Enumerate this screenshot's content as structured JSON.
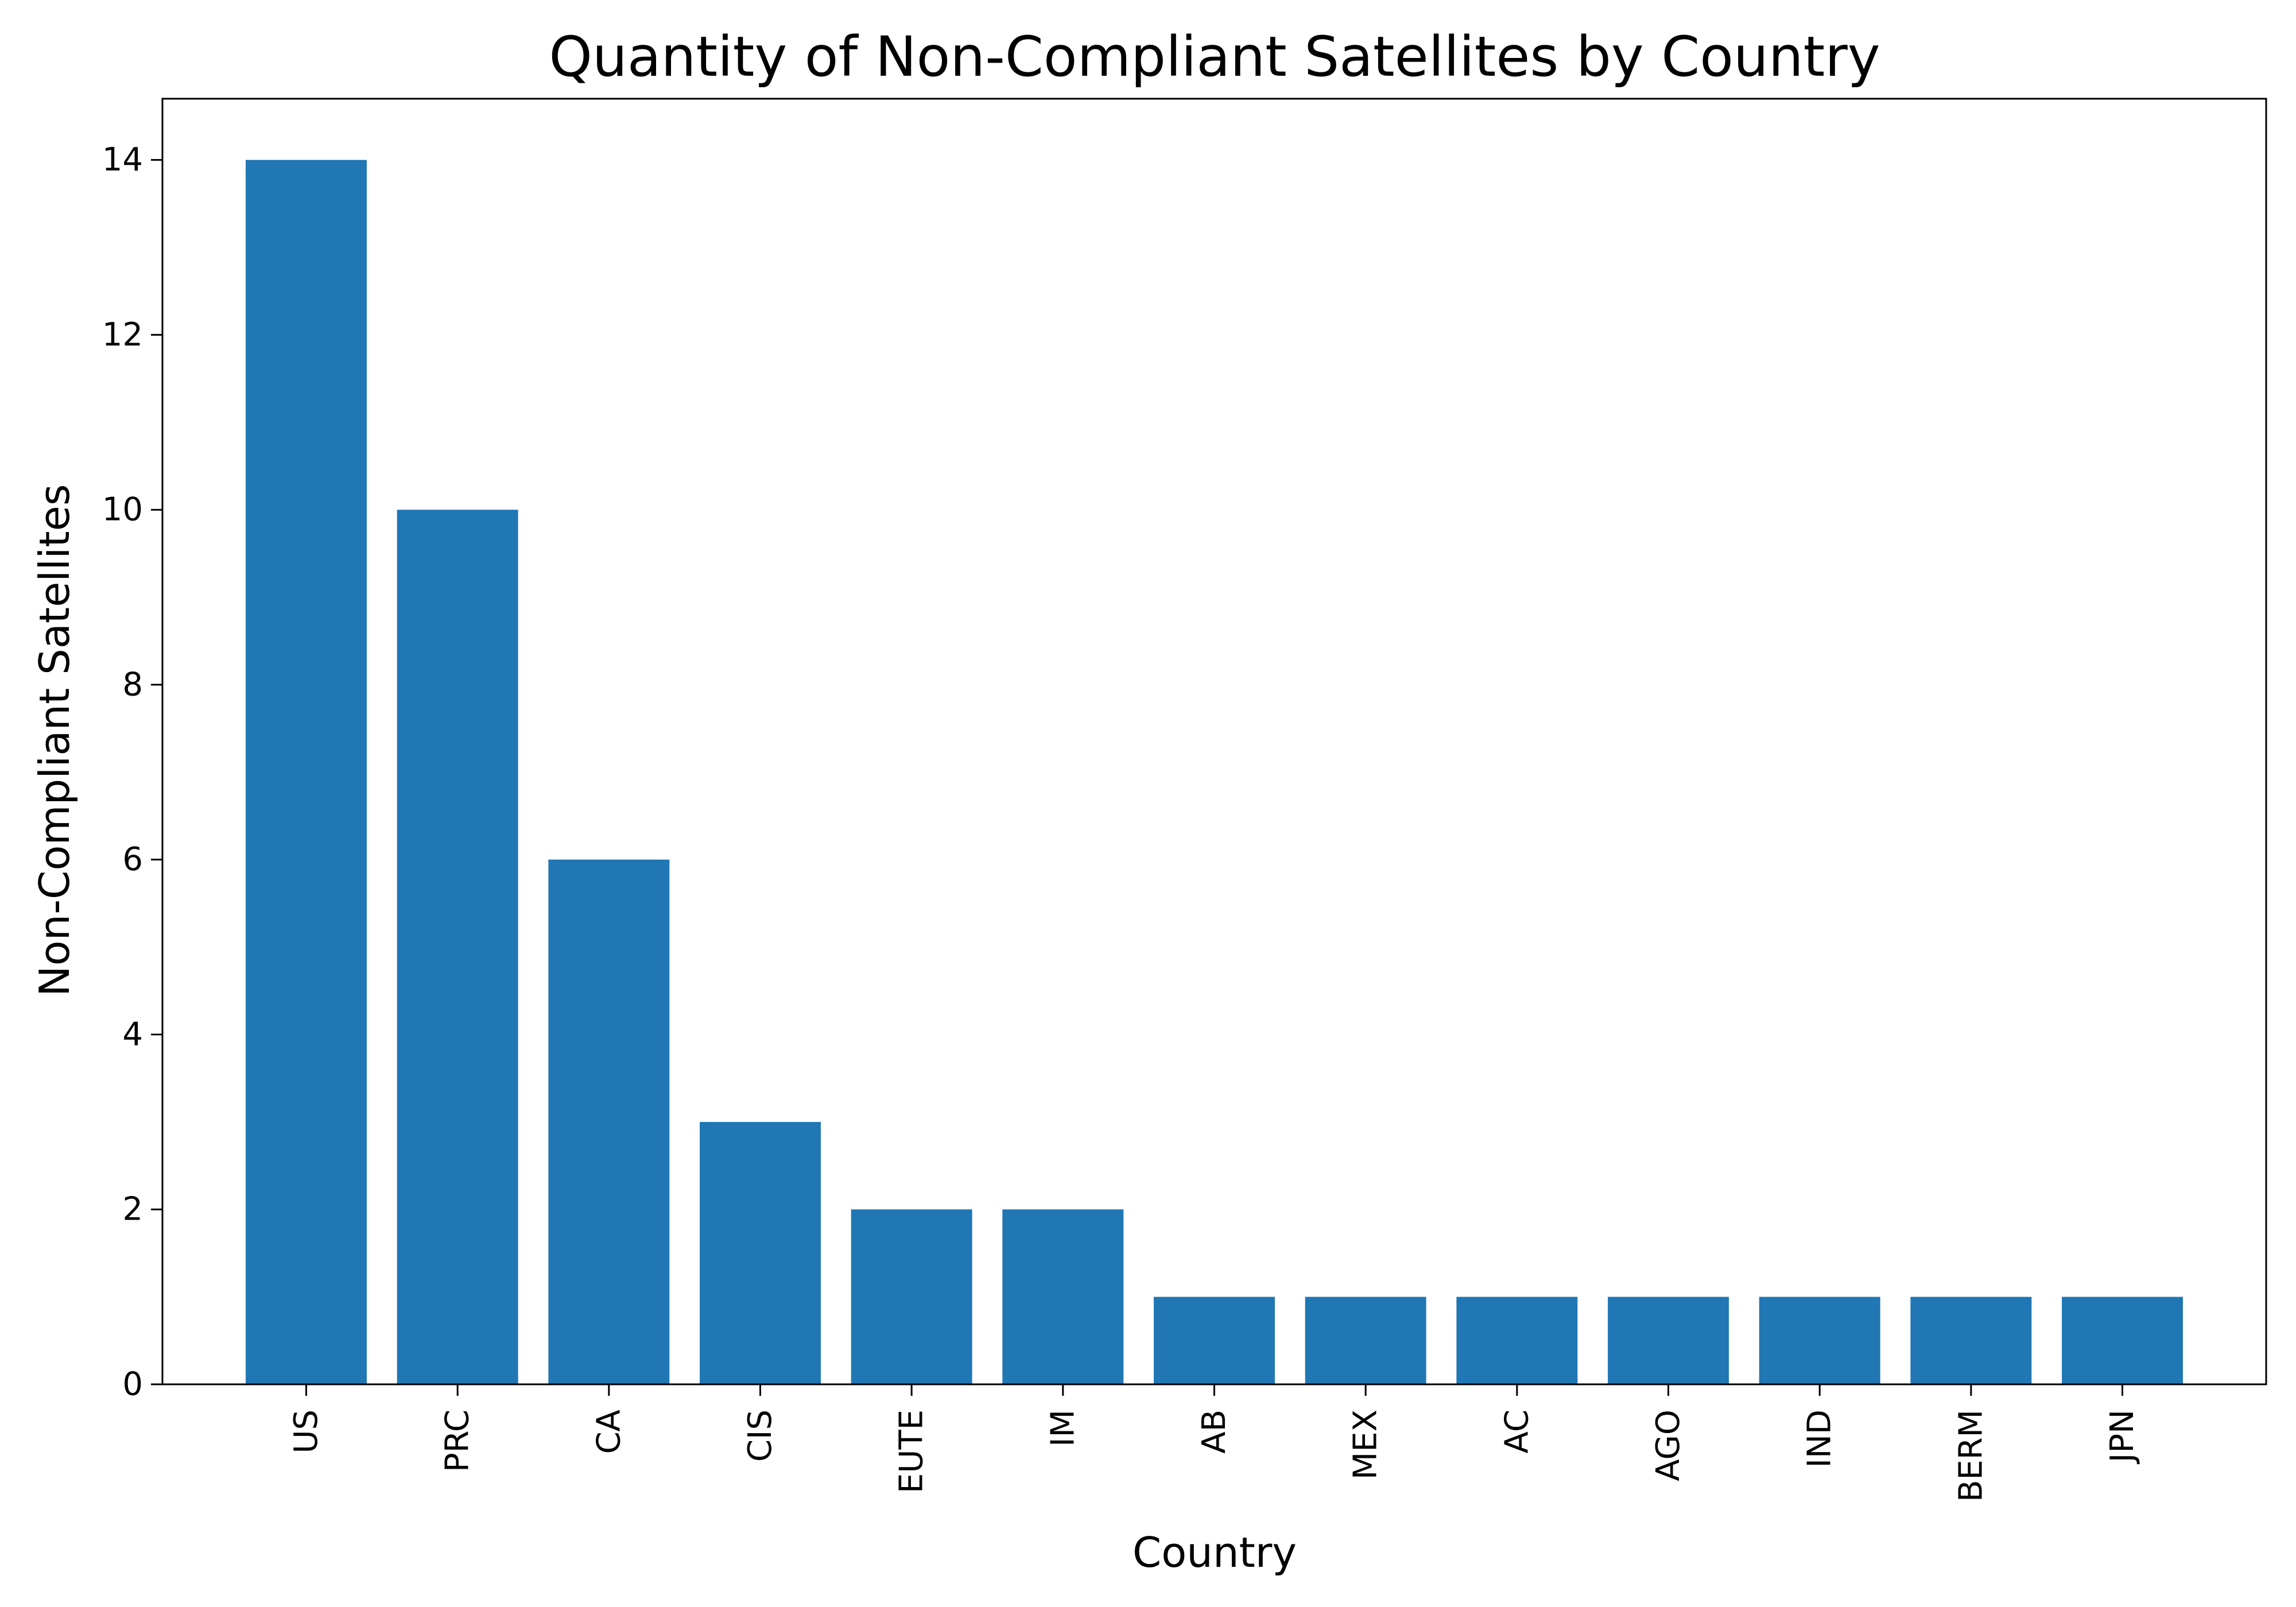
{
  "chart_data": {
    "type": "bar",
    "title": "Quantity of Non-Compliant Satellites by Country",
    "xlabel": "Country",
    "ylabel": "Non-Compliant Satellites",
    "categories": [
      "US",
      "PRC",
      "CA",
      "CIS",
      "EUTE",
      "IM",
      "AB",
      "MEX",
      "AC",
      "AGO",
      "IND",
      "BERM",
      "JPN"
    ],
    "values": [
      14,
      10,
      6,
      3,
      2,
      2,
      1,
      1,
      1,
      1,
      1,
      1,
      1
    ],
    "ylim": [
      0,
      14.7
    ],
    "yticks": [
      0,
      2,
      4,
      6,
      8,
      10,
      12,
      14
    ],
    "grid": false,
    "legend": "none",
    "bar_color": "#2077b4"
  }
}
